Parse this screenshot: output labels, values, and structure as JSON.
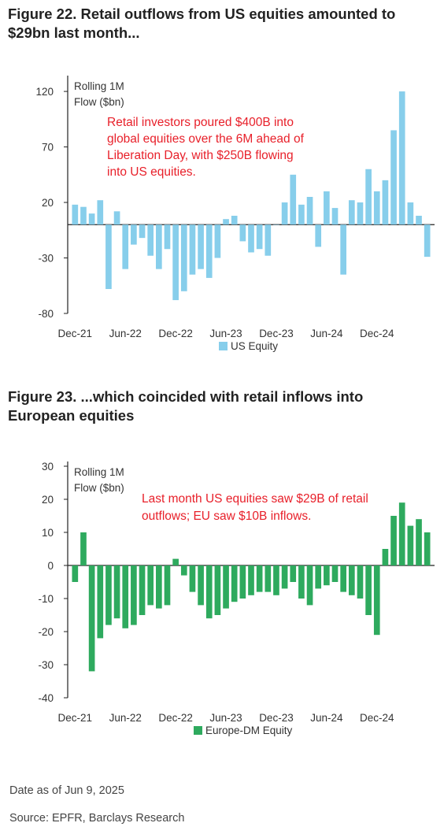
{
  "figure1_title": "Figure 22. Retail outflows from US equities amounted to $29bn last month...",
  "figure2_title": "Figure 23. ...which coincided with retail inflows into European equities",
  "date_note": "Date as of Jun 9, 2025",
  "source_note": "Source: EPFR, Barclays Research",
  "chart_data": [
    {
      "type": "bar",
      "ylabel_lines": [
        "Rolling 1M",
        "Flow ($bn)"
      ],
      "ylim": [
        -80,
        130
      ],
      "yticks": [
        120,
        70,
        20,
        -30,
        -80
      ],
      "x_tick_labels": [
        "Dec-21",
        "Jun-22",
        "Dec-22",
        "Jun-23",
        "Dec-23",
        "Jun-24",
        "Dec-24"
      ],
      "legend_position": "bottom-center",
      "annotation_lines": [
        "Retail investors poured $400B into",
        "global equities over the 6M ahead of",
        "Liberation Day, with $250B flowing",
        "into US equities."
      ],
      "series": [
        {
          "name": "US Equity",
          "color": "#87ceeb"
        }
      ],
      "x": [
        "Dec-21",
        "Jan-22",
        "Feb-22",
        "Mar-22",
        "Apr-22",
        "May-22",
        "Jun-22",
        "Jul-22",
        "Aug-22",
        "Sep-22",
        "Oct-22",
        "Nov-22",
        "Dec-22",
        "Jan-23",
        "Feb-23",
        "Mar-23",
        "Apr-23",
        "May-23",
        "Jun-23",
        "Jul-23",
        "Aug-23",
        "Sep-23",
        "Oct-23",
        "Nov-23",
        "Dec-23",
        "Jan-24",
        "Feb-24",
        "Mar-24",
        "Apr-24",
        "May-24",
        "Jun-24",
        "Jul-24",
        "Aug-24",
        "Sep-24",
        "Oct-24",
        "Nov-24",
        "Dec-24",
        "Jan-25",
        "Feb-25",
        "Mar-25",
        "Apr-25",
        "May-25",
        "Jun-25"
      ],
      "values": [
        18,
        16,
        10,
        22,
        -58,
        12,
        -40,
        -18,
        -12,
        -28,
        -40,
        -22,
        -68,
        -60,
        -45,
        -40,
        -48,
        -30,
        5,
        8,
        -15,
        -25,
        -22,
        -28,
        0,
        20,
        45,
        18,
        25,
        -20,
        30,
        15,
        -45,
        22,
        20,
        50,
        30,
        40,
        85,
        120,
        20,
        8,
        -29
      ]
    },
    {
      "type": "bar",
      "ylabel_lines": [
        "Rolling 1M",
        "Flow ($bn)"
      ],
      "ylim": [
        -40,
        30
      ],
      "yticks": [
        30,
        20,
        10,
        0,
        -10,
        -20,
        -30,
        -40
      ],
      "x_tick_labels": [
        "Dec-21",
        "Jun-22",
        "Dec-22",
        "Jun-23",
        "Dec-23",
        "Jun-24",
        "Dec-24"
      ],
      "legend_position": "bottom-center",
      "annotation_lines": [
        "Last month US equities saw $29B of retail",
        "outflows; EU saw $10B inflows."
      ],
      "series": [
        {
          "name": "Europe-DM Equity",
          "color": "#2eaa5e"
        }
      ],
      "x": [
        "Dec-21",
        "Jan-22",
        "Feb-22",
        "Mar-22",
        "Apr-22",
        "May-22",
        "Jun-22",
        "Jul-22",
        "Aug-22",
        "Sep-22",
        "Oct-22",
        "Nov-22",
        "Dec-22",
        "Jan-23",
        "Feb-23",
        "Mar-23",
        "Apr-23",
        "May-23",
        "Jun-23",
        "Jul-23",
        "Aug-23",
        "Sep-23",
        "Oct-23",
        "Nov-23",
        "Dec-23",
        "Jan-24",
        "Feb-24",
        "Mar-24",
        "Apr-24",
        "May-24",
        "Jun-24",
        "Jul-24",
        "Aug-24",
        "Sep-24",
        "Oct-24",
        "Nov-24",
        "Dec-24",
        "Jan-25",
        "Feb-25",
        "Mar-25",
        "Apr-25",
        "May-25",
        "Jun-25"
      ],
      "values": [
        -5,
        10,
        -32,
        -22,
        -18,
        -16,
        -19,
        -18,
        -15,
        -12,
        -13,
        -12,
        2,
        -3,
        -8,
        -12,
        -16,
        -15,
        -13,
        -11,
        -10,
        -9,
        -8,
        -8,
        -9,
        -7,
        -5,
        -10,
        -12,
        -7,
        -6,
        -5,
        -8,
        -9,
        -10,
        -15,
        -21,
        5,
        15,
        19,
        12,
        14,
        10
      ]
    }
  ]
}
